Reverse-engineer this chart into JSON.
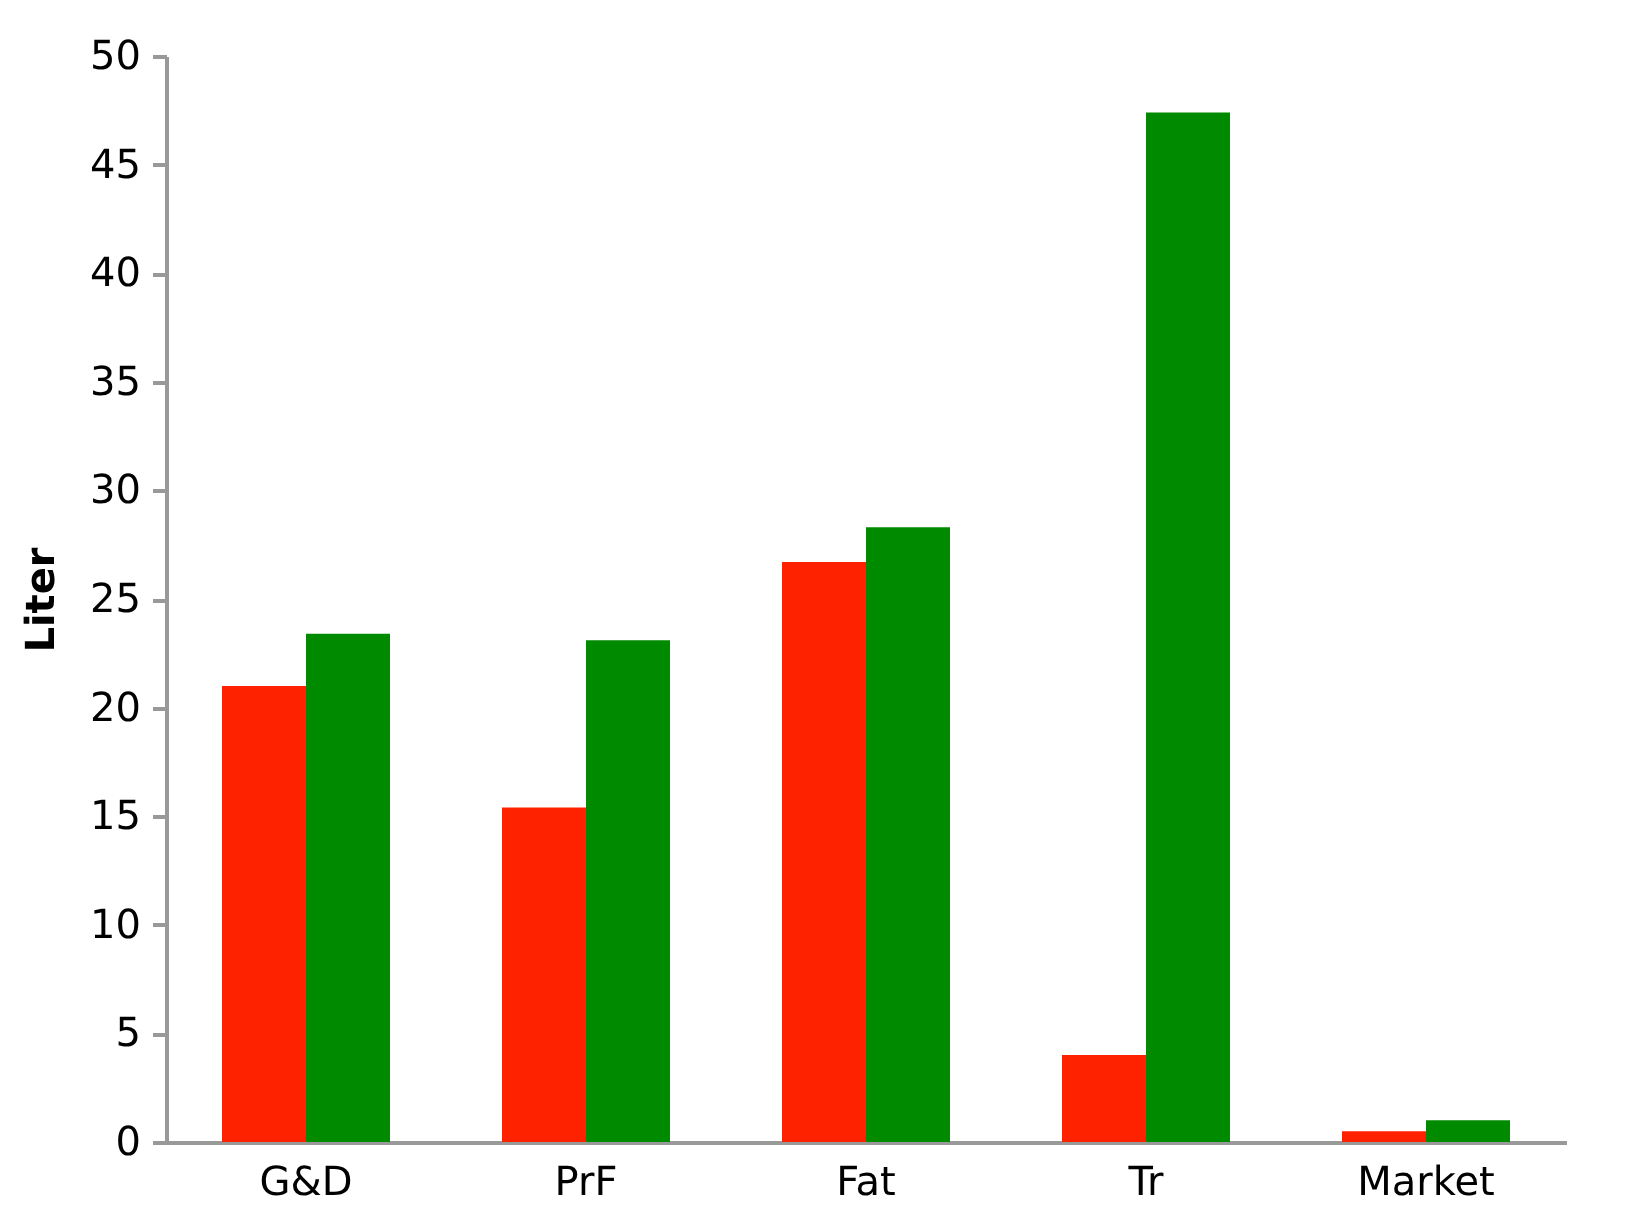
{
  "chart_data": {
    "type": "bar",
    "ylabel": "Liter",
    "categories": [
      "G&D",
      "PrF",
      "Fat",
      "Tr",
      "Market"
    ],
    "series": [
      {
        "color": "#ff2200",
        "values": [
          21,
          15.4,
          26.7,
          4,
          0.5
        ]
      },
      {
        "color": "#008a00",
        "values": [
          23.4,
          23.1,
          28.3,
          47.4,
          1
        ]
      }
    ],
    "ylim": [
      0,
      50
    ],
    "yticks": [
      0,
      5,
      10,
      15,
      20,
      25,
      30,
      35,
      40,
      45,
      50
    ],
    "grid": false,
    "legend": false
  }
}
